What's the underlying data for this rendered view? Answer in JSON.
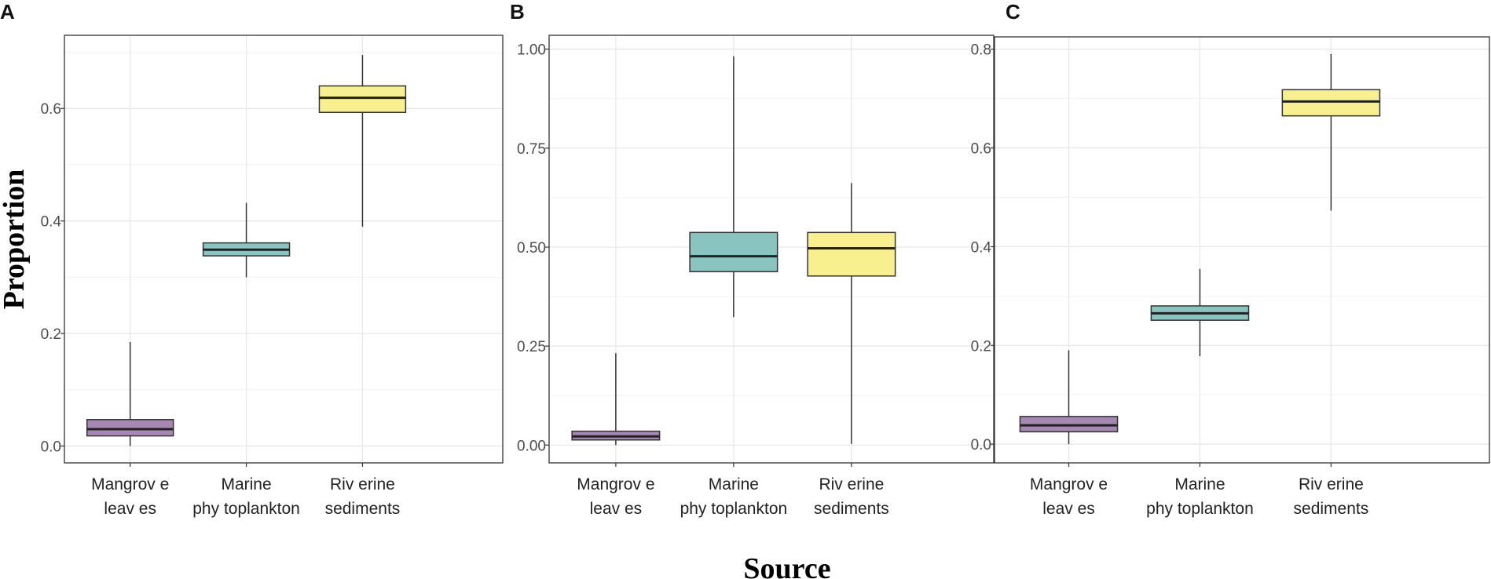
{
  "figure": {
    "ylabel": "Proportion",
    "xlabel": "Source"
  },
  "chart_data": [
    {
      "type": "box",
      "panel": "A",
      "categories": [
        [
          "Mangrov e",
          "leav es"
        ],
        [
          "Marine",
          "phy toplankton"
        ],
        [
          "Riv erine",
          "sediments"
        ]
      ],
      "ylim": [
        -0.03,
        0.73
      ],
      "yticks": [
        0.0,
        0.2,
        0.4,
        0.6
      ],
      "ytick_labels": [
        "0.0",
        "0.2",
        "0.4",
        "0.6"
      ],
      "grid": true,
      "colors": [
        "#a688b3",
        "#8ac4c1",
        "#f8f08e"
      ],
      "boxes": [
        {
          "q1": 0.018,
          "median": 0.03,
          "q3": 0.047,
          "wmin": 0.0,
          "wmax": 0.185
        },
        {
          "q1": 0.338,
          "median": 0.349,
          "q3": 0.361,
          "wmin": 0.3,
          "wmax": 0.432
        },
        {
          "q1": 0.593,
          "median": 0.619,
          "q3": 0.64,
          "wmin": 0.39,
          "wmax": 0.695
        }
      ]
    },
    {
      "type": "box",
      "panel": "B",
      "categories": [
        [
          "Mangrov e",
          "leav es"
        ],
        [
          "Marine",
          "phy toplankton"
        ],
        [
          "Riv erine",
          "sediments"
        ]
      ],
      "ylim": [
        -0.045,
        1.035
      ],
      "yticks": [
        0.0,
        0.25,
        0.5,
        0.75,
        1.0
      ],
      "ytick_labels": [
        "0.00",
        "0.25",
        "0.50",
        "0.75",
        "1.00"
      ],
      "grid": true,
      "colors": [
        "#a688b3",
        "#8ac4c1",
        "#f8f08e"
      ],
      "boxes": [
        {
          "q1": 0.013,
          "median": 0.022,
          "q3": 0.035,
          "wmin": 0.0,
          "wmax": 0.232
        },
        {
          "q1": 0.438,
          "median": 0.477,
          "q3": 0.537,
          "wmin": 0.323,
          "wmax": 0.982
        },
        {
          "q1": 0.427,
          "median": 0.497,
          "q3": 0.537,
          "wmin": 0.003,
          "wmax": 0.662
        }
      ]
    },
    {
      "type": "box",
      "panel": "C",
      "categories": [
        [
          "Mangrov e",
          "leav es"
        ],
        [
          "Marine",
          "phy toplankton"
        ],
        [
          "Riv erine",
          "sediments"
        ]
      ],
      "ylim": [
        -0.038,
        0.825
      ],
      "yticks": [
        0.0,
        0.2,
        0.4,
        0.6,
        0.8
      ],
      "ytick_labels": [
        "0.0",
        "0.2",
        "0.4",
        "0.6",
        "0.8"
      ],
      "grid": true,
      "colors": [
        "#a688b3",
        "#8ac4c1",
        "#f8f08e"
      ],
      "boxes": [
        {
          "q1": 0.025,
          "median": 0.038,
          "q3": 0.056,
          "wmin": 0.0,
          "wmax": 0.19
        },
        {
          "q1": 0.251,
          "median": 0.265,
          "q3": 0.28,
          "wmin": 0.178,
          "wmax": 0.355
        },
        {
          "q1": 0.665,
          "median": 0.694,
          "q3": 0.718,
          "wmin": 0.473,
          "wmax": 0.79
        }
      ]
    }
  ]
}
